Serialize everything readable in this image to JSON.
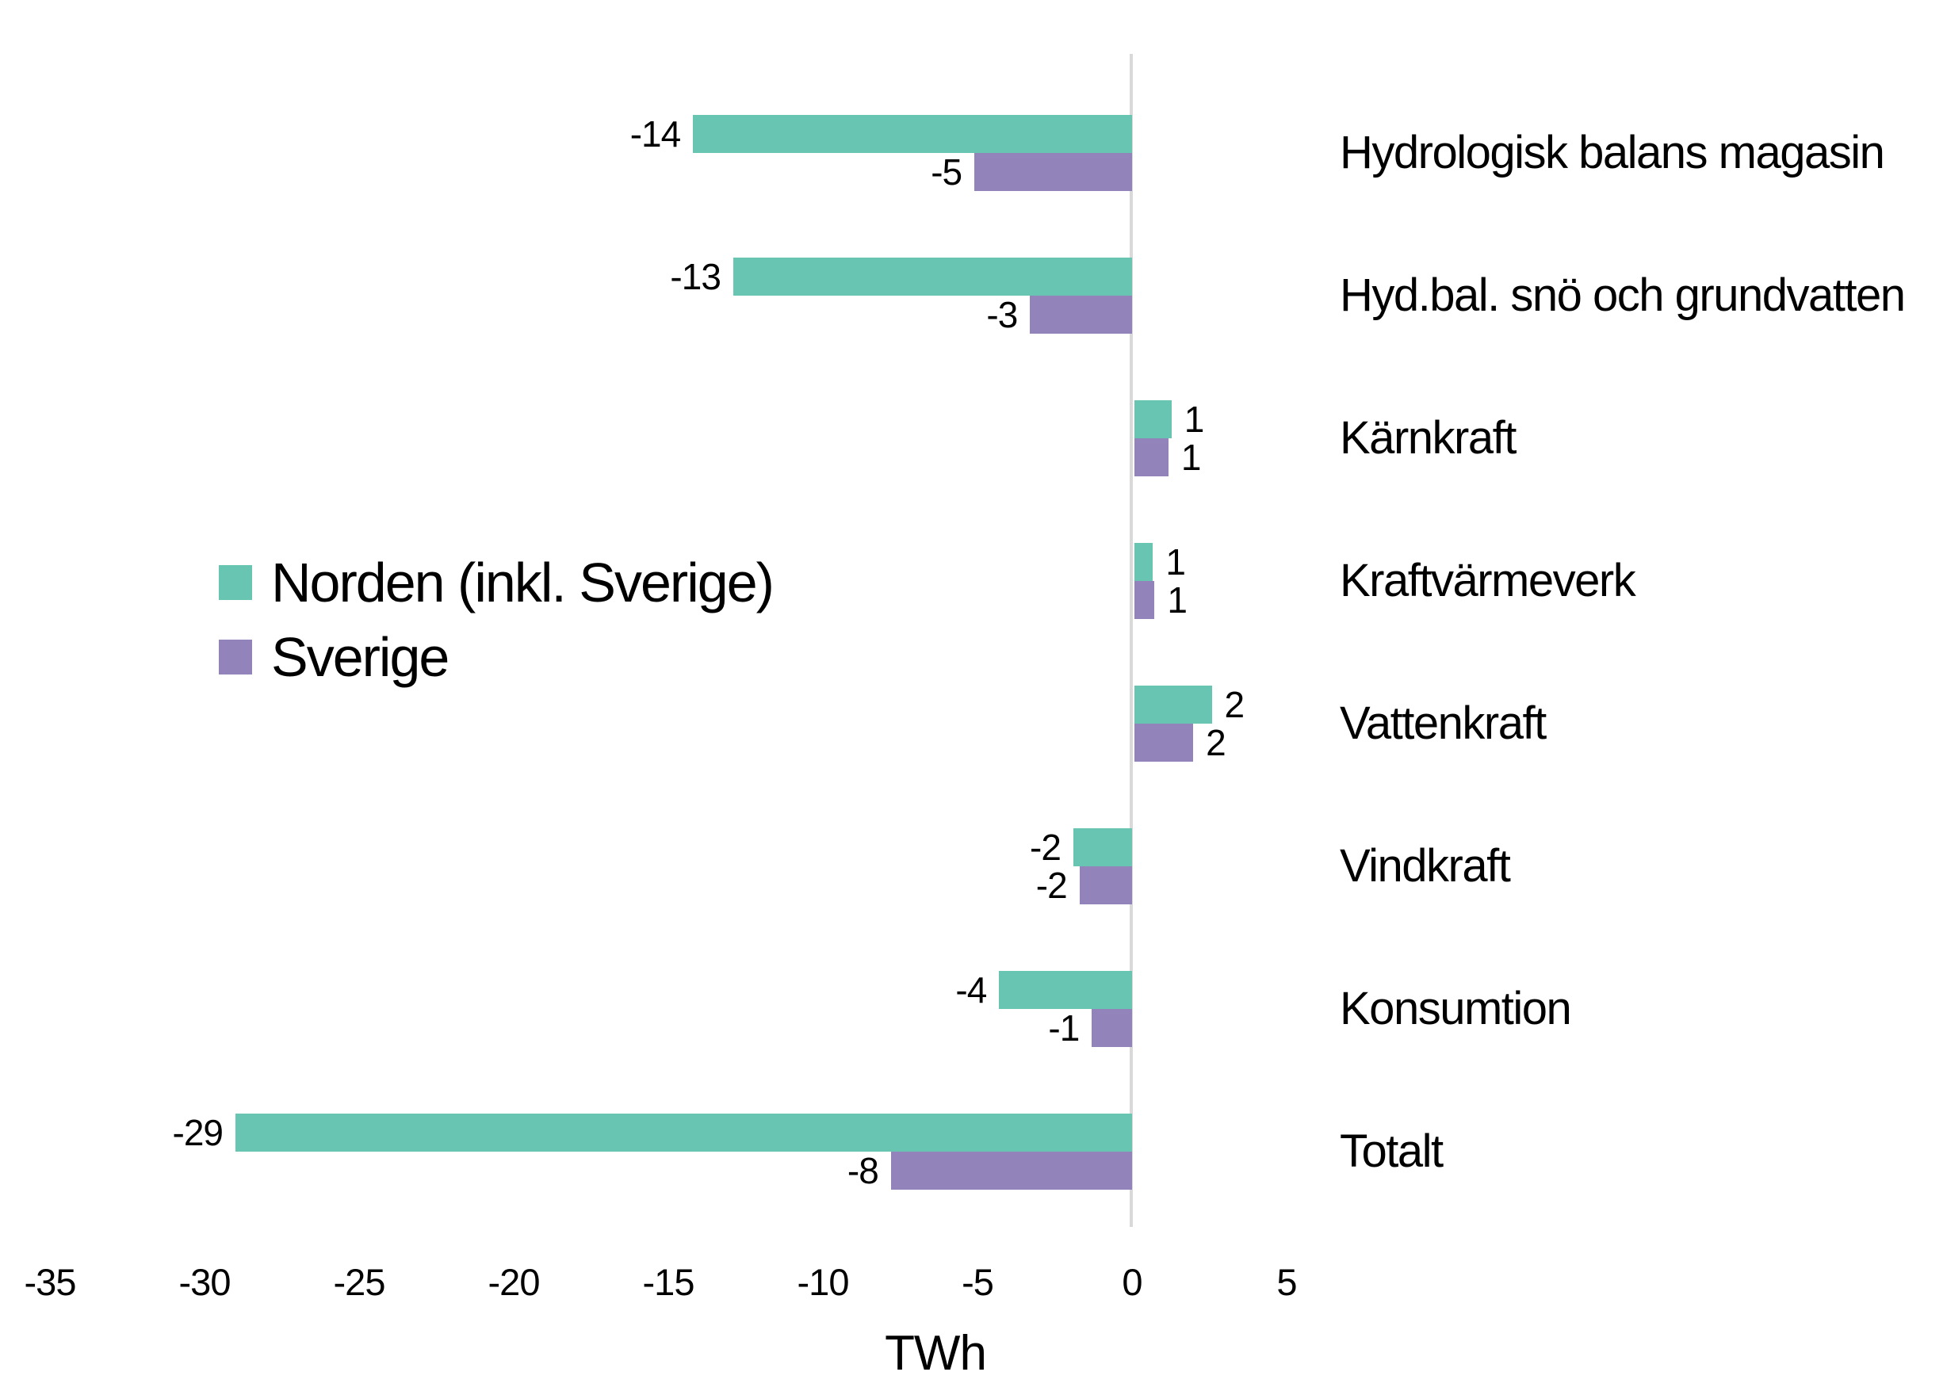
{
  "chart_data": {
    "type": "bar",
    "orientation": "horizontal",
    "title": "",
    "xlabel": "TWh",
    "ylabel": "",
    "xlim": [
      -35,
      5
    ],
    "grid": false,
    "background": "#FFFFFF",
    "axis_line_color": "#D9D9D9",
    "text_color": "#000000",
    "legend_position": "middle-left",
    "x_ticks": [
      -35,
      -30,
      -25,
      -20,
      -15,
      -10,
      -5,
      0,
      5
    ],
    "x_tick_labels": [
      "-35",
      "-30",
      "-25",
      "-20",
      "-15",
      "-10",
      "-5",
      "0",
      "5"
    ],
    "categories": [
      "Hydrologisk balans magasin",
      "Hyd.bal. snö och grundvatten",
      "Kärnkraft",
      "Kraftvärmeverk",
      "Vattenkraft",
      "Vindkraft",
      "Konsumtion",
      "Totalt"
    ],
    "series": [
      {
        "name": "Norden (inkl. Sverige)",
        "color": "#67C5B1",
        "values": [
          -14,
          -13,
          1,
          1,
          2,
          -2,
          -4,
          -29
        ],
        "data_labels": [
          "-14",
          "-13",
          "1",
          "1",
          "2",
          "-2",
          "-4",
          "-29"
        ],
        "render_lengths": [
          -14.2,
          -12.9,
          1.2,
          0.6,
          2.5,
          -1.9,
          -4.3,
          -29.0
        ]
      },
      {
        "name": "Sverige",
        "color": "#9283BA",
        "values": [
          -5,
          -3,
          1,
          1,
          2,
          -2,
          -1,
          -8
        ],
        "data_labels": [
          "-5",
          "-3",
          "1",
          "1",
          "2",
          "-2",
          "-1",
          "-8"
        ],
        "render_lengths": [
          -5.1,
          -3.3,
          1.1,
          0.65,
          1.9,
          -1.7,
          -1.3,
          -7.8
        ]
      }
    ]
  },
  "legend": {
    "items": [
      {
        "label": "Norden (inkl. Sverige)",
        "color": "#67C5B1"
      },
      {
        "label": "Sverige",
        "color": "#9283BA"
      }
    ]
  },
  "x_axis": {
    "title": "TWh"
  }
}
